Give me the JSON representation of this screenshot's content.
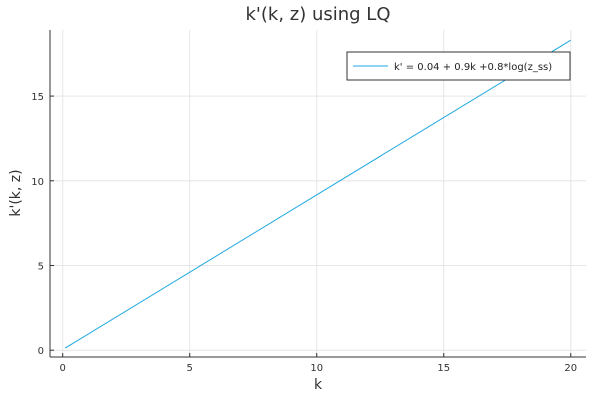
{
  "chart_data": {
    "type": "line",
    "title": "k'(k, z) using LQ",
    "xlabel": "k",
    "ylabel": "k'(k, z)",
    "xlim": [
      -0.5,
      20.6
    ],
    "ylim": [
      -0.4,
      18.9
    ],
    "xticks": [
      0,
      5,
      10,
      15,
      20
    ],
    "yticks": [
      0,
      5,
      10,
      15
    ],
    "grid": true,
    "legend_position": "top-right",
    "series": [
      {
        "name": "k' = 0.04 + 0.9k +0.8*log(z_ss)",
        "color": "#1ea7e0",
        "x": [
          0.1,
          20.0
        ],
        "y": [
          0.13,
          18.3
        ]
      }
    ]
  }
}
